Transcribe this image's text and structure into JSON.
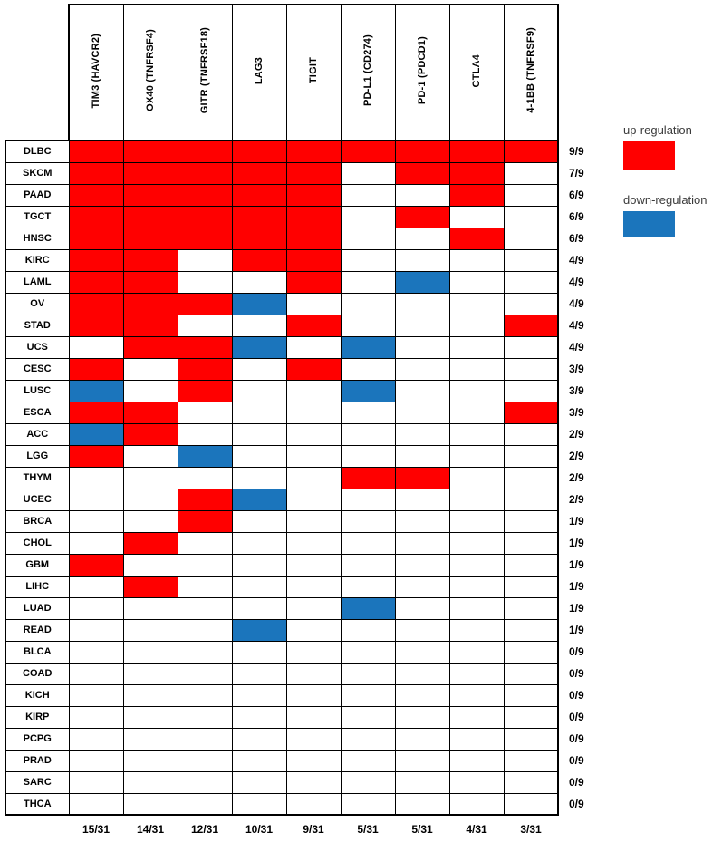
{
  "legend": {
    "up_label": "up-regulation",
    "down_label": "down-regulation",
    "up_color": "#FF0000",
    "down_color": "#1B75BC"
  },
  "chart_data": {
    "type": "heatmap",
    "title": "",
    "columns": [
      "TIM3 (HAVCR2)",
      "OX40 (TNFRSF4)",
      "GITR (TNFRSF18)",
      "LAG3",
      "TIGIT",
      "PD-L1 (CD274)",
      "PD-1 (PDCD1)",
      "CTLA4",
      "4-1BB (TNFRSF9)"
    ],
    "column_totals": [
      "15/31",
      "14/31",
      "12/31",
      "10/31",
      "9/31",
      "5/31",
      "5/31",
      "4/31",
      "3/31"
    ],
    "cell_encoding": {
      "U": "up-regulation (red)",
      "D": "down-regulation (blue)",
      ".": "blank (white)"
    },
    "rows": [
      {
        "label": "DLBC",
        "cells": "UUUUUUUUU",
        "total": "9/9"
      },
      {
        "label": "SKCM",
        "cells": "UUUUU.UU.",
        "total": "7/9"
      },
      {
        "label": "PAAD",
        "cells": "UUUUU..U.",
        "total": "6/9"
      },
      {
        "label": "TGCT",
        "cells": "UUUUU.U..",
        "total": "6/9"
      },
      {
        "label": "HNSC",
        "cells": "UUUUU..U.",
        "total": "6/9"
      },
      {
        "label": "KIRC",
        "cells": "UU.UU....",
        "total": "4/9"
      },
      {
        "label": "LAML",
        "cells": "UU..U.D..",
        "total": "4/9"
      },
      {
        "label": "OV",
        "cells": "UUUD.....",
        "total": "4/9"
      },
      {
        "label": "STAD",
        "cells": "UU..U...U",
        "total": "4/9"
      },
      {
        "label": "UCS",
        "cells": ".UUD.D...",
        "total": "4/9"
      },
      {
        "label": "CESC",
        "cells": "U.U.U....",
        "total": "3/9"
      },
      {
        "label": "LUSC",
        "cells": "D.U..D...",
        "total": "3/9"
      },
      {
        "label": "ESCA",
        "cells": "UU......U",
        "total": "3/9"
      },
      {
        "label": "ACC",
        "cells": "DU.......",
        "total": "2/9"
      },
      {
        "label": "LGG",
        "cells": "U.D......",
        "total": "2/9"
      },
      {
        "label": "THYM",
        "cells": ".....UU..",
        "total": "2/9"
      },
      {
        "label": "UCEC",
        "cells": "..UD.....",
        "total": "2/9"
      },
      {
        "label": "BRCA",
        "cells": "..U......",
        "total": "1/9"
      },
      {
        "label": "CHOL",
        "cells": ".U.......",
        "total": "1/9"
      },
      {
        "label": "GBM",
        "cells": "U........",
        "total": "1/9"
      },
      {
        "label": "LIHC",
        "cells": ".U.......",
        "total": "1/9"
      },
      {
        "label": "LUAD",
        "cells": ".....D...",
        "total": "1/9"
      },
      {
        "label": "READ",
        "cells": "...D.....",
        "total": "1/9"
      },
      {
        "label": "BLCA",
        "cells": ".........",
        "total": "0/9"
      },
      {
        "label": "COAD",
        "cells": ".........",
        "total": "0/9"
      },
      {
        "label": "KICH",
        "cells": ".........",
        "total": "0/9"
      },
      {
        "label": "KIRP",
        "cells": ".........",
        "total": "0/9"
      },
      {
        "label": "PCPG",
        "cells": ".........",
        "total": "0/9"
      },
      {
        "label": "PRAD",
        "cells": ".........",
        "total": "0/9"
      },
      {
        "label": "SARC",
        "cells": ".........",
        "total": "0/9"
      },
      {
        "label": "THCA",
        "cells": ".........",
        "total": "0/9"
      }
    ]
  }
}
